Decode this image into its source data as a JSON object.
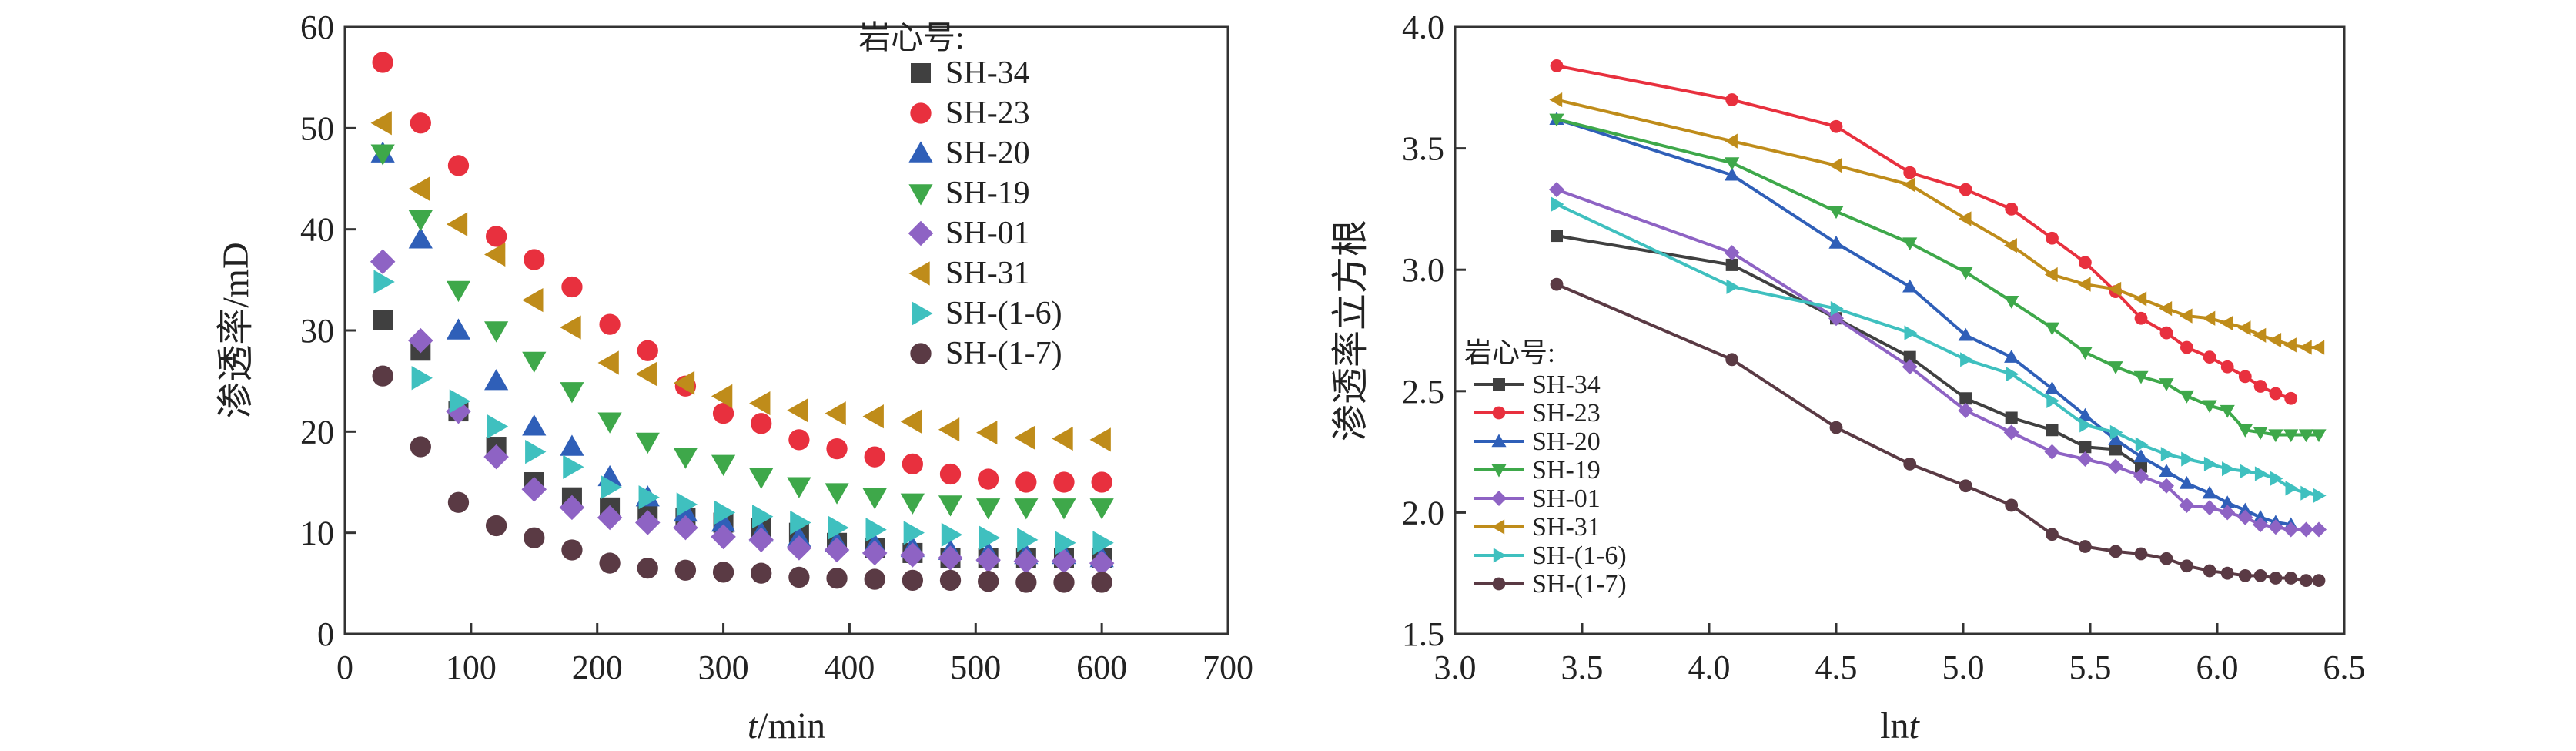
{
  "chart_data": [
    {
      "type": "scatter",
      "title": "",
      "xlabel_italic": "t",
      "xlabel_unit": "/min",
      "ylabel": "渗透率/mD",
      "xlim": [
        0,
        700
      ],
      "ylim": [
        0,
        60
      ],
      "xticks": [
        0,
        100,
        200,
        300,
        400,
        500,
        600,
        700
      ],
      "yticks": [
        0,
        10,
        20,
        30,
        40,
        50,
        60
      ],
      "grid": false,
      "legend_title": "岩心号:",
      "legend_position": "top-right",
      "x": [
        30,
        60,
        90,
        120,
        150,
        180,
        210,
        240,
        270,
        300,
        330,
        360,
        390,
        420,
        450,
        480,
        510,
        540,
        570,
        600
      ],
      "series": [
        {
          "name": "SH-34",
          "color": "#404040",
          "marker": "square",
          "values": [
            31,
            28,
            22,
            18.5,
            15,
            13.5,
            12.5,
            12,
            11.5,
            11,
            10.5,
            10,
            9,
            8.5,
            8,
            7.5,
            7.5,
            7.5,
            7.5,
            7.5
          ]
        },
        {
          "name": "SH-23",
          "color": "#e8303e",
          "marker": "circle",
          "values": [
            56.5,
            50.5,
            46.3,
            39.3,
            37,
            34.3,
            30.6,
            28,
            24.5,
            21.8,
            20.8,
            19.2,
            18.3,
            17.5,
            16.8,
            15.8,
            15.3,
            15,
            15,
            15
          ]
        },
        {
          "name": "SH-20",
          "color": "#2f5fb8",
          "marker": "triangle-up",
          "values": [
            47.5,
            39,
            30,
            25,
            20.5,
            18.5,
            15.5,
            13.5,
            12,
            11,
            10,
            9.5,
            9,
            8.8,
            8.5,
            8.2,
            8,
            7.8,
            7.8,
            7.5
          ]
        },
        {
          "name": "SH-19",
          "color": "#3ea84a",
          "marker": "triangle-down",
          "values": [
            47.5,
            41,
            34,
            30,
            27,
            24,
            21,
            19,
            17.5,
            16.8,
            15.5,
            14.6,
            14,
            13.5,
            13,
            12.8,
            12.5,
            12.5,
            12.5,
            12.5
          ]
        },
        {
          "name": "SH-01",
          "color": "#8e63c4",
          "marker": "diamond",
          "values": [
            36.8,
            29,
            22,
            17.5,
            14.3,
            12.5,
            11.5,
            11,
            10.5,
            9.6,
            9.3,
            8.5,
            8.3,
            8,
            7.8,
            7.5,
            7.3,
            7.2,
            7.2,
            7
          ]
        },
        {
          "name": "SH-31",
          "color": "#bf8c1a",
          "marker": "triangle-left",
          "values": [
            50.5,
            44,
            40.5,
            37.5,
            33,
            30.3,
            26.8,
            25.7,
            24.8,
            23.5,
            22.8,
            22.1,
            21.8,
            21.5,
            21,
            20.2,
            19.9,
            19.4,
            19.3,
            19.2
          ]
        },
        {
          "name": "SH-(1-6)",
          "color": "#3fc0bf",
          "marker": "triangle-right",
          "values": [
            34.8,
            25.3,
            23,
            20.5,
            18,
            16.5,
            14.5,
            13.5,
            12.8,
            12,
            11.6,
            11,
            10.5,
            10.3,
            10,
            9.8,
            9.5,
            9.3,
            9,
            9
          ]
        },
        {
          "name": "SH-(1-7)",
          "color": "#5a3a44",
          "marker": "circle",
          "values": [
            25.5,
            18.5,
            13,
            10.7,
            9.5,
            8.3,
            7,
            6.5,
            6.3,
            6.1,
            6,
            5.6,
            5.5,
            5.4,
            5.3,
            5.3,
            5.2,
            5.1,
            5.1,
            5.1
          ]
        }
      ]
    },
    {
      "type": "line",
      "title": "",
      "xlabel_prefix": "ln",
      "xlabel_italic": "t",
      "ylabel": "渗透率立方根",
      "xlim": [
        3.0,
        6.5
      ],
      "ylim": [
        1.5,
        4.0
      ],
      "xticks": [
        "3.0",
        "3.5",
        "4.0",
        "4.5",
        "5.0",
        "5.5",
        "6.0",
        "6.5"
      ],
      "yticks": [
        "1.5",
        "2.0",
        "2.5",
        "3.0",
        "3.5",
        "4.0"
      ],
      "grid": false,
      "legend_title": "岩心号:",
      "legend_position": "lower-left",
      "x": [
        3.4,
        4.09,
        4.5,
        4.79,
        5.01,
        5.19,
        5.35,
        5.48,
        5.6,
        5.7,
        5.8,
        5.88,
        5.97,
        6.04,
        6.11,
        6.17,
        6.23,
        6.29,
        6.35,
        6.4
      ],
      "series": [
        {
          "name": "SH-34",
          "color": "#404040",
          "marker": "square",
          "x": [
            3.4,
            4.09,
            4.5,
            4.79,
            5.01,
            5.19,
            5.35,
            5.48,
            5.6,
            5.7
          ],
          "values": [
            3.14,
            3.02,
            2.8,
            2.64,
            2.47,
            2.39,
            2.34,
            2.27,
            2.26,
            2.19
          ]
        },
        {
          "name": "SH-23",
          "color": "#e8303e",
          "marker": "circle",
          "x": [
            3.4,
            4.09,
            4.5,
            4.79,
            5.01,
            5.19,
            5.35,
            5.48,
            5.6,
            5.7,
            5.8,
            5.88,
            5.97,
            6.04,
            6.11,
            6.17,
            6.23,
            6.29
          ],
          "values": [
            3.84,
            3.7,
            3.59,
            3.4,
            3.33,
            3.25,
            3.13,
            3.03,
            2.91,
            2.8,
            2.74,
            2.68,
            2.64,
            2.6,
            2.56,
            2.52,
            2.49,
            2.47
          ]
        },
        {
          "name": "SH-20",
          "color": "#2f5fb8",
          "marker": "triangle-up",
          "x": [
            3.4,
            4.09,
            4.5,
            4.79,
            5.01,
            5.19,
            5.35,
            5.48,
            5.6,
            5.7,
            5.8,
            5.88,
            5.97,
            6.04,
            6.11,
            6.17,
            6.23,
            6.29
          ],
          "values": [
            3.62,
            3.39,
            3.11,
            2.93,
            2.73,
            2.64,
            2.51,
            2.4,
            2.3,
            2.23,
            2.17,
            2.12,
            2.08,
            2.04,
            2.01,
            1.98,
            1.96,
            1.95
          ]
        },
        {
          "name": "SH-19",
          "color": "#3ea84a",
          "marker": "triangle-down",
          "x": [
            3.4,
            4.09,
            4.5,
            4.79,
            5.01,
            5.19,
            5.35,
            5.48,
            5.6,
            5.7,
            5.8,
            5.88,
            5.97,
            6.04,
            6.11,
            6.17,
            6.23,
            6.29,
            6.35,
            6.4
          ],
          "values": [
            3.62,
            3.44,
            3.24,
            3.11,
            2.99,
            2.87,
            2.76,
            2.66,
            2.6,
            2.56,
            2.53,
            2.48,
            2.44,
            2.42,
            2.34,
            2.33,
            2.32,
            2.32,
            2.32,
            2.32
          ]
        },
        {
          "name": "SH-01",
          "color": "#8e63c4",
          "marker": "diamond",
          "x": [
            3.4,
            4.09,
            4.5,
            4.79,
            5.01,
            5.19,
            5.35,
            5.48,
            5.6,
            5.7,
            5.8,
            5.88,
            5.97,
            6.04,
            6.11,
            6.17,
            6.23,
            6.29,
            6.35,
            6.4
          ],
          "values": [
            3.33,
            3.07,
            2.8,
            2.6,
            2.42,
            2.33,
            2.25,
            2.22,
            2.19,
            2.15,
            2.11,
            2.03,
            2.02,
            2.0,
            1.98,
            1.95,
            1.94,
            1.93,
            1.93,
            1.93
          ]
        },
        {
          "name": "SH-31",
          "color": "#bf8c1a",
          "marker": "triangle-left",
          "x": [
            3.4,
            4.09,
            4.5,
            4.79,
            5.01,
            5.19,
            5.35,
            5.48,
            5.6,
            5.7,
            5.8,
            5.88,
            5.97,
            6.04,
            6.11,
            6.17,
            6.23,
            6.29,
            6.35,
            6.4
          ],
          "values": [
            3.7,
            3.53,
            3.43,
            3.35,
            3.21,
            3.1,
            2.98,
            2.94,
            2.92,
            2.88,
            2.84,
            2.81,
            2.8,
            2.78,
            2.76,
            2.73,
            2.71,
            2.69,
            2.68,
            2.68
          ]
        },
        {
          "name": "SH-(1-6)",
          "color": "#3fc0bf",
          "marker": "triangle-right",
          "x": [
            3.4,
            4.09,
            4.5,
            4.79,
            5.01,
            5.19,
            5.35,
            5.48,
            5.6,
            5.7,
            5.8,
            5.88,
            5.97,
            6.04,
            6.11,
            6.17,
            6.23,
            6.29,
            6.35,
            6.4
          ],
          "values": [
            3.27,
            2.93,
            2.84,
            2.74,
            2.63,
            2.57,
            2.46,
            2.36,
            2.33,
            2.28,
            2.24,
            2.22,
            2.2,
            2.18,
            2.17,
            2.16,
            2.14,
            2.1,
            2.08,
            2.07
          ]
        },
        {
          "name": "SH-(1-7)",
          "color": "#5a3a44",
          "marker": "circle",
          "x": [
            3.4,
            4.09,
            4.5,
            4.79,
            5.01,
            5.19,
            5.35,
            5.48,
            5.6,
            5.7,
            5.8,
            5.88,
            5.97,
            6.04,
            6.11,
            6.17,
            6.23,
            6.29,
            6.35,
            6.4
          ],
          "values": [
            2.94,
            2.63,
            2.35,
            2.2,
            2.11,
            2.03,
            1.91,
            1.86,
            1.84,
            1.83,
            1.81,
            1.78,
            1.76,
            1.75,
            1.74,
            1.74,
            1.73,
            1.73,
            1.72,
            1.72
          ]
        }
      ]
    }
  ]
}
